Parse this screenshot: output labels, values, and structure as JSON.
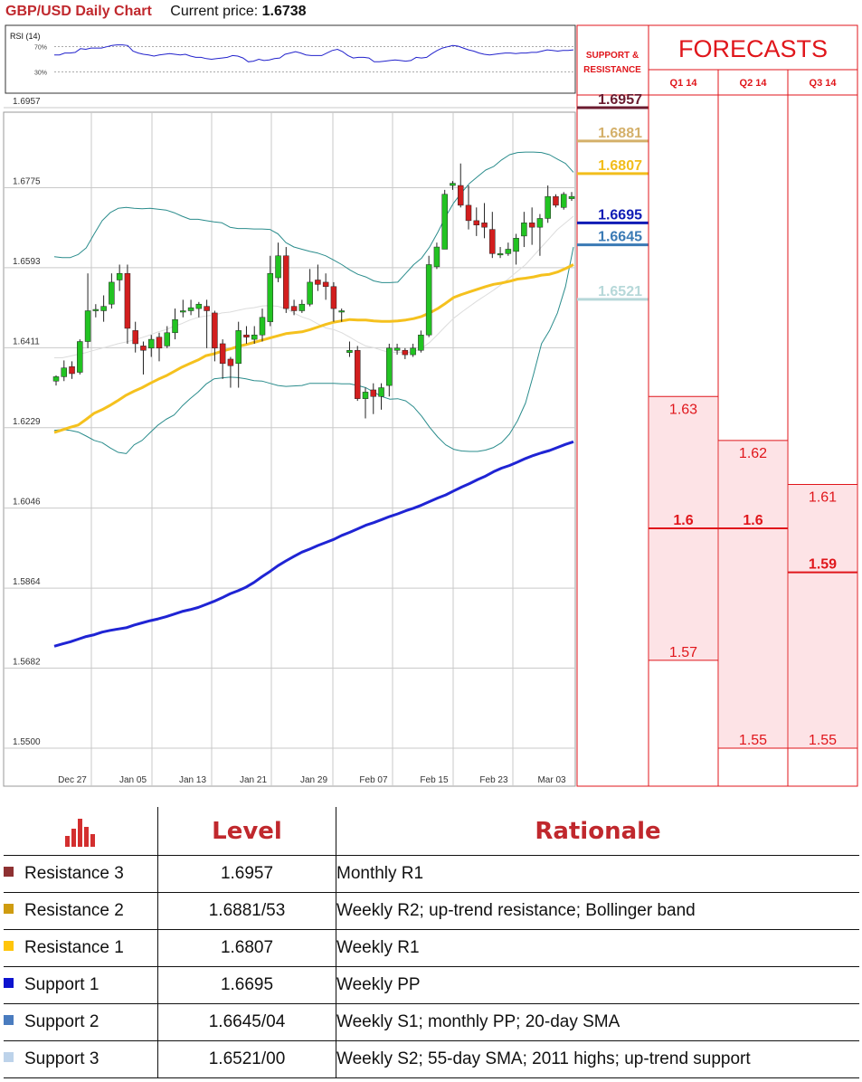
{
  "header": {
    "title": "GBP/USD Daily Chart",
    "current_price_label": "Current price:",
    "current_price": "1.6738"
  },
  "colors": {
    "bull": "#22c322",
    "bear": "#d21e1e",
    "sma_blue": "#1f24d4",
    "sma_yellow": "#f5c11e",
    "bollinger": "#2a8c8c",
    "rsi_line": "#2222cc",
    "forecast_red": "#e0161b",
    "forecast_fill": "#fde3e6"
  },
  "chart_data": [
    {
      "type": "line",
      "name": "rsi",
      "title": "RSI (14)",
      "levels": [
        "70%",
        "30%"
      ],
      "ylim": [
        0,
        100
      ],
      "values": [
        57,
        57,
        60,
        60,
        61,
        67,
        66,
        68,
        68,
        68,
        70,
        72,
        73,
        73,
        72,
        63,
        60,
        58,
        57,
        55,
        57,
        58,
        59,
        58,
        57,
        58,
        55,
        53,
        53,
        51,
        50,
        51,
        52,
        53,
        56,
        55,
        52,
        46,
        47,
        50,
        48,
        49,
        51,
        52,
        58,
        60,
        62,
        60,
        57,
        56,
        56,
        56,
        60,
        64,
        66,
        62,
        56,
        52,
        53,
        53,
        52,
        46,
        46,
        47,
        48,
        49,
        48,
        47,
        48,
        53,
        52,
        53,
        59,
        64,
        68,
        70,
        72,
        71,
        68,
        65,
        63,
        60,
        58,
        57,
        58,
        59,
        60,
        60,
        59,
        60,
        60,
        61,
        61,
        63,
        65,
        64,
        63,
        64,
        64,
        65
      ]
    },
    {
      "type": "candlestick",
      "name": "price",
      "xlabels": [
        "Dec 27",
        "Jan 05",
        "Jan 13",
        "Jan 21",
        "Jan 29",
        "Feb 07",
        "Feb 15",
        "Feb 23",
        "Mar 03"
      ],
      "ylabels": [
        "1.6957",
        "1.6775",
        "1.6593",
        "1.6411",
        "1.6229",
        "1.6046",
        "1.5864",
        "1.5682",
        "1.5500"
      ],
      "ylim": [
        1.55,
        1.6957
      ],
      "grid": true,
      "candles": [
        [
          1.6335,
          1.6345,
          1.6325,
          1.6348
        ],
        [
          1.6345,
          1.6365,
          1.6335,
          1.6382
        ],
        [
          1.6368,
          1.6352,
          1.634,
          1.638
        ],
        [
          1.6355,
          1.6425,
          1.635,
          1.643
        ],
        [
          1.6425,
          1.6495,
          1.641,
          1.658
        ],
        [
          1.6495,
          1.6498,
          1.648,
          1.651
        ],
        [
          1.6495,
          1.6505,
          1.647,
          1.653
        ],
        [
          1.651,
          1.656,
          1.65,
          1.658
        ],
        [
          1.6565,
          1.658,
          1.654,
          1.66
        ],
        [
          1.658,
          1.6455,
          1.642,
          1.66
        ],
        [
          1.645,
          1.642,
          1.64,
          1.647
        ],
        [
          1.6415,
          1.6405,
          1.635,
          1.6425
        ],
        [
          1.641,
          1.643,
          1.639,
          1.644
        ],
        [
          1.6435,
          1.641,
          1.638,
          1.6445
        ],
        [
          1.6415,
          1.6445,
          1.641,
          1.646
        ],
        [
          1.6445,
          1.6475,
          1.643,
          1.65
        ],
        [
          1.6495,
          1.6495,
          1.648,
          1.652
        ],
        [
          1.6495,
          1.6502,
          1.6485,
          1.652
        ],
        [
          1.65,
          1.651,
          1.648,
          1.6515
        ],
        [
          1.6505,
          1.6495,
          1.641,
          1.652
        ],
        [
          1.649,
          1.641,
          1.638,
          1.6495
        ],
        [
          1.642,
          1.6375,
          1.634,
          1.643
        ],
        [
          1.6385,
          1.637,
          1.632,
          1.639
        ],
        [
          1.6375,
          1.645,
          1.632,
          1.647
        ],
        [
          1.644,
          1.6435,
          1.642,
          1.646
        ],
        [
          1.643,
          1.644,
          1.642,
          1.646
        ],
        [
          1.644,
          1.648,
          1.6425,
          1.65
        ],
        [
          1.647,
          1.658,
          1.646,
          1.662
        ],
        [
          1.657,
          1.662,
          1.656,
          1.665
        ],
        [
          1.662,
          1.65,
          1.649,
          1.664
        ],
        [
          1.6505,
          1.6495,
          1.6485,
          1.652
        ],
        [
          1.6495,
          1.651,
          1.649,
          1.652
        ],
        [
          1.651,
          1.656,
          1.6505,
          1.659
        ],
        [
          1.6565,
          1.6555,
          1.654,
          1.66
        ],
        [
          1.656,
          1.655,
          1.652,
          1.658
        ],
        [
          1.655,
          1.65,
          1.647,
          1.656
        ],
        [
          1.6495,
          1.6495,
          1.647,
          1.65
        ],
        [
          1.64,
          1.6405,
          1.639,
          1.6425
        ],
        [
          1.6405,
          1.6295,
          1.629,
          1.6415
        ],
        [
          1.6295,
          1.631,
          1.625,
          1.632
        ],
        [
          1.6315,
          1.63,
          1.626,
          1.633
        ],
        [
          1.63,
          1.632,
          1.627,
          1.633
        ],
        [
          1.6325,
          1.641,
          1.63,
          1.642
        ],
        [
          1.6405,
          1.641,
          1.6395,
          1.642
        ],
        [
          1.6405,
          1.6395,
          1.6385,
          1.641
        ],
        [
          1.6395,
          1.641,
          1.639,
          1.642
        ],
        [
          1.6405,
          1.644,
          1.64,
          1.645
        ],
        [
          1.644,
          1.66,
          1.6435,
          1.662
        ],
        [
          1.6595,
          1.664,
          1.659,
          1.665
        ],
        [
          1.6635,
          1.676,
          1.6635,
          1.677
        ],
        [
          1.678,
          1.6785,
          1.677,
          1.679
        ],
        [
          1.678,
          1.6735,
          1.673,
          1.683
        ],
        [
          1.6735,
          1.67,
          1.668,
          1.678
        ],
        [
          1.67,
          1.669,
          1.6665,
          1.673
        ],
        [
          1.6695,
          1.6685,
          1.666,
          1.674
        ],
        [
          1.668,
          1.6625,
          1.6615,
          1.672
        ],
        [
          1.6625,
          1.6625,
          1.6615,
          1.664
        ],
        [
          1.6625,
          1.6635,
          1.662,
          1.665
        ],
        [
          1.663,
          1.666,
          1.66,
          1.667
        ],
        [
          1.6665,
          1.6695,
          1.664,
          1.672
        ],
        [
          1.6695,
          1.6685,
          1.6645,
          1.673
        ],
        [
          1.6685,
          1.6705,
          1.662,
          1.6715
        ],
        [
          1.6705,
          1.6755,
          1.6695,
          1.678
        ],
        [
          1.6755,
          1.6735,
          1.673,
          1.676
        ],
        [
          1.673,
          1.676,
          1.6725,
          1.6765
        ],
        [
          1.675,
          1.6755,
          1.6745,
          1.6765
        ]
      ],
      "series": [
        {
          "name": "SMA blue",
          "values": [
            1.5732,
            1.5737,
            1.5742,
            1.5748,
            1.5754,
            1.5758,
            1.5764,
            1.5768,
            1.5771,
            1.5774,
            1.578,
            1.5785,
            1.579,
            1.5794,
            1.5799,
            1.5805,
            1.5811,
            1.5815,
            1.582,
            1.5827,
            1.5834,
            1.5842,
            1.5851,
            1.5858,
            1.5866,
            1.5877,
            1.589,
            1.5902,
            1.5915,
            1.5926,
            1.5936,
            1.5946,
            1.5953,
            1.5961,
            1.5968,
            1.5975,
            1.5984,
            1.5991,
            1.5999,
            1.6007,
            1.6013,
            1.602,
            1.6027,
            1.6033,
            1.604,
            1.6046,
            1.6053,
            1.6061,
            1.6069,
            1.6076,
            1.6085,
            1.6094,
            1.6102,
            1.6111,
            1.6119,
            1.6129,
            1.6137,
            1.6143,
            1.6151,
            1.6159,
            1.6166,
            1.6172,
            1.6177,
            1.6184,
            1.6191,
            1.6197
          ]
        },
        {
          "name": "SMA yellow",
          "values": [
            1.6218,
            1.6224,
            1.623,
            1.6235,
            1.6248,
            1.6262,
            1.627,
            1.628,
            1.6291,
            1.6303,
            1.6312,
            1.632,
            1.633,
            1.6339,
            1.6347,
            1.6357,
            1.6367,
            1.6375,
            1.6383,
            1.6393,
            1.6397,
            1.6403,
            1.6408,
            1.6414,
            1.6418,
            1.6423,
            1.6428,
            1.6433,
            1.6438,
            1.6443,
            1.6445,
            1.6447,
            1.6452,
            1.6458,
            1.6464,
            1.6469,
            1.6472,
            1.6475,
            1.6474,
            1.6474,
            1.6472,
            1.6471,
            1.6471,
            1.6472,
            1.6474,
            1.6477,
            1.6482,
            1.649,
            1.65,
            1.6512,
            1.6525,
            1.6532,
            1.6538,
            1.6544,
            1.655,
            1.6555,
            1.6558,
            1.6562,
            1.6567,
            1.6569,
            1.6572,
            1.6576,
            1.6578,
            1.6583,
            1.6591,
            1.66
          ]
        },
        {
          "name": "Bollinger upper",
          "values": [
            1.6618,
            1.6616,
            1.6616,
            1.6623,
            1.6638,
            1.667,
            1.67,
            1.6718,
            1.6728,
            1.673,
            1.6728,
            1.6727,
            1.6728,
            1.6726,
            1.6724,
            1.6718,
            1.671,
            1.6703,
            1.6703,
            1.67,
            1.6697,
            1.6695,
            1.6685,
            1.6682,
            1.6682,
            1.6681,
            1.6681,
            1.668,
            1.667,
            1.665,
            1.664,
            1.6635,
            1.663,
            1.6626,
            1.662,
            1.661,
            1.66,
            1.6588,
            1.6578,
            1.6572,
            1.6563,
            1.6559,
            1.6559,
            1.656,
            1.658,
            1.66,
            1.6615,
            1.664,
            1.6673,
            1.6709,
            1.674,
            1.6764,
            1.6785,
            1.68,
            1.6815,
            1.6823,
            1.6838,
            1.685,
            1.6855,
            1.6856,
            1.6856,
            1.6855,
            1.685,
            1.684,
            1.683,
            1.681
          ]
        },
        {
          "name": "Bollinger lower",
          "values": [
            1.6223,
            1.6225,
            1.6223,
            1.6219,
            1.621,
            1.62,
            1.6195,
            1.6183,
            1.6173,
            1.617,
            1.619,
            1.62,
            1.6218,
            1.6235,
            1.6248,
            1.6258,
            1.6278,
            1.6295,
            1.631,
            1.6328,
            1.634,
            1.6342,
            1.6344,
            1.6343,
            1.634,
            1.6336,
            1.6335,
            1.633,
            1.6325,
            1.6323,
            1.6324,
            1.6325,
            1.633,
            1.633,
            1.633,
            1.633,
            1.6329,
            1.6329,
            1.6325,
            1.632,
            1.631,
            1.63,
            1.6294,
            1.6295,
            1.629,
            1.6276,
            1.6255,
            1.623,
            1.6208,
            1.619,
            1.618,
            1.6176,
            1.6175,
            1.6175,
            1.6178,
            1.6184,
            1.6195,
            1.6215,
            1.6245,
            1.6285,
            1.635,
            1.642,
            1.645,
            1.649,
            1.655,
            1.664
          ]
        },
        {
          "name": "SMA grey",
          "values": [
            1.6388,
            1.6388,
            1.6392,
            1.6396,
            1.64,
            1.6405,
            1.641,
            1.6415,
            1.642,
            1.6424,
            1.6429,
            1.6434,
            1.644,
            1.6447,
            1.6452,
            1.646,
            1.6466,
            1.6474,
            1.648,
            1.6483,
            1.6485,
            1.649,
            1.6492,
            1.6496,
            1.65,
            1.6502,
            1.6506,
            1.6507,
            1.6505,
            1.65,
            1.649,
            1.6481,
            1.6475,
            1.6465,
            1.6456,
            1.6452,
            1.6445,
            1.6435,
            1.6424,
            1.6415,
            1.6411,
            1.6405,
            1.64,
            1.6401,
            1.64,
            1.6402,
            1.641,
            1.6423,
            1.6441,
            1.646,
            1.6478,
            1.6492,
            1.6505,
            1.6518,
            1.653,
            1.6542,
            1.6555,
            1.657,
            1.6585,
            1.66,
            1.662,
            1.664,
            1.666,
            1.668,
            1.6695,
            1.671
          ]
        }
      ],
      "levels": [
        {
          "label": "1.6957",
          "value": 1.6957,
          "color": "#6b1b2f"
        },
        {
          "label": "1.6881",
          "value": 1.6881,
          "color": "#d4b06a"
        },
        {
          "label": "1.6807",
          "value": 1.6807,
          "color": "#f2bd1b"
        },
        {
          "label": "1.6695",
          "value": 1.6695,
          "color": "#0f1bb5"
        },
        {
          "label": "1.6645",
          "value": 1.6645,
          "color": "#3a7ab5"
        },
        {
          "label": "1.6521",
          "value": 1.6521,
          "color": "#b6d8d9"
        }
      ]
    },
    {
      "type": "bar",
      "name": "forecasts",
      "title": "FORECASTS",
      "categories": [
        "Q1 14",
        "Q2 14",
        "Q3 14"
      ],
      "series": [
        {
          "name": "high",
          "values": [
            1.63,
            1.62,
            1.61
          ]
        },
        {
          "name": "central",
          "values": [
            1.6,
            1.6,
            1.59
          ]
        },
        {
          "name": "low",
          "values": [
            1.57,
            1.55,
            1.55
          ]
        }
      ],
      "labels": {
        "high": [
          "1.63",
          "1.62",
          "1.61"
        ],
        "central": [
          "1.6",
          "1.6",
          "1.59"
        ],
        "low": [
          "1.57",
          "1.55",
          "1.55"
        ]
      },
      "ylim": [
        1.55,
        1.6957
      ]
    }
  ],
  "sr_header": {
    "line1": "SUPPORT &",
    "line2": "RESISTANCE"
  },
  "table": {
    "header_level": "Level",
    "header_rationale": "Rationale",
    "rows": [
      {
        "name": "Resistance 3",
        "level": "1.6957",
        "rationale": "Monthly R1",
        "color": "#8e3132"
      },
      {
        "name": "Resistance 2",
        "level": "1.6881/53",
        "rationale": "Weekly R2; up-trend resistance; Bollinger band",
        "color": "#cf9c10"
      },
      {
        "name": "Resistance 1",
        "level": "1.6807",
        "rationale": "Weekly R1",
        "color": "#ffc50a"
      },
      {
        "name": "Support 1",
        "level": "1.6695",
        "rationale": "Weekly PP",
        "color": "#0d13cf"
      },
      {
        "name": "Support 2",
        "level": "1.6645/04",
        "rationale": "Weekly S1; monthly PP; 20-day SMA",
        "color": "#4a7cbf"
      },
      {
        "name": "Support 3",
        "level": "1.6521/00",
        "rationale": "Weekly S2; 55-day SMA; 2011 highs; up-trend support",
        "color": "#bdd3ea"
      }
    ]
  }
}
